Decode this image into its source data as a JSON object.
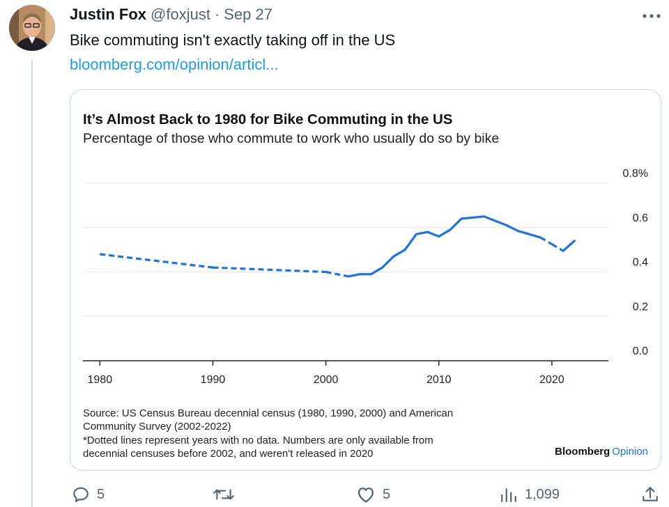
{
  "tweet": {
    "author_name": "Justin Fox",
    "handle": "@foxjust",
    "separator": "·",
    "date": "Sep 27",
    "text": "Bike commuting isn't exactly taking off in the US",
    "link": "bloomberg.com/opinion/articl..."
  },
  "chart_data": {
    "type": "line",
    "title": "It’s Almost Back to 1980 for Bike Commuting in the US",
    "subtitle": "Percentage of those who commute to work who usually do so by bike",
    "x_ticks": [
      "1980",
      "1990",
      "2000",
      "2010",
      "2020"
    ],
    "y_ticks": [
      "0.8%",
      "0.6",
      "0.4",
      "0.2",
      "0.0"
    ],
    "xlim": [
      1978.5,
      2025
    ],
    "ylim": [
      0,
      0.8
    ],
    "grid": true,
    "color": "#1a73e8",
    "series": [
      {
        "name": "",
        "x": [
          1980,
          1990,
          2000,
          2002,
          2003,
          2004,
          2005,
          2006,
          2007,
          2008,
          2009,
          2010,
          2011,
          2012,
          2013,
          2014,
          2015,
          2016,
          2017,
          2018,
          2019,
          2020,
          2021,
          2022
        ],
        "y": [
          0.48,
          0.42,
          0.4,
          0.38,
          0.39,
          0.39,
          0.42,
          0.47,
          0.5,
          0.57,
          0.58,
          0.56,
          0.59,
          0.64,
          0.645,
          0.65,
          0.63,
          0.61,
          0.585,
          0.57,
          0.555,
          0.525,
          0.495,
          0.54
        ],
        "dotted_segments": [
          [
            1980,
            2002
          ],
          [
            2019,
            2021
          ]
        ]
      }
    ],
    "source_lines": [
      "Source: US Census Bureau decennial census (1980, 1990, 2000) and American",
      "Community Survey (2002-2022)",
      "*Dotted lines represent years with no data. Numbers are only available from",
      "decennial censuses before 2002, and weren't released in 2020"
    ],
    "brand_primary": "Bloomberg",
    "brand_secondary": "Opinion",
    "brand_secondary_color": "#1a73e8"
  },
  "actions": {
    "replies": "5",
    "likes": "5",
    "views": "1,099"
  }
}
